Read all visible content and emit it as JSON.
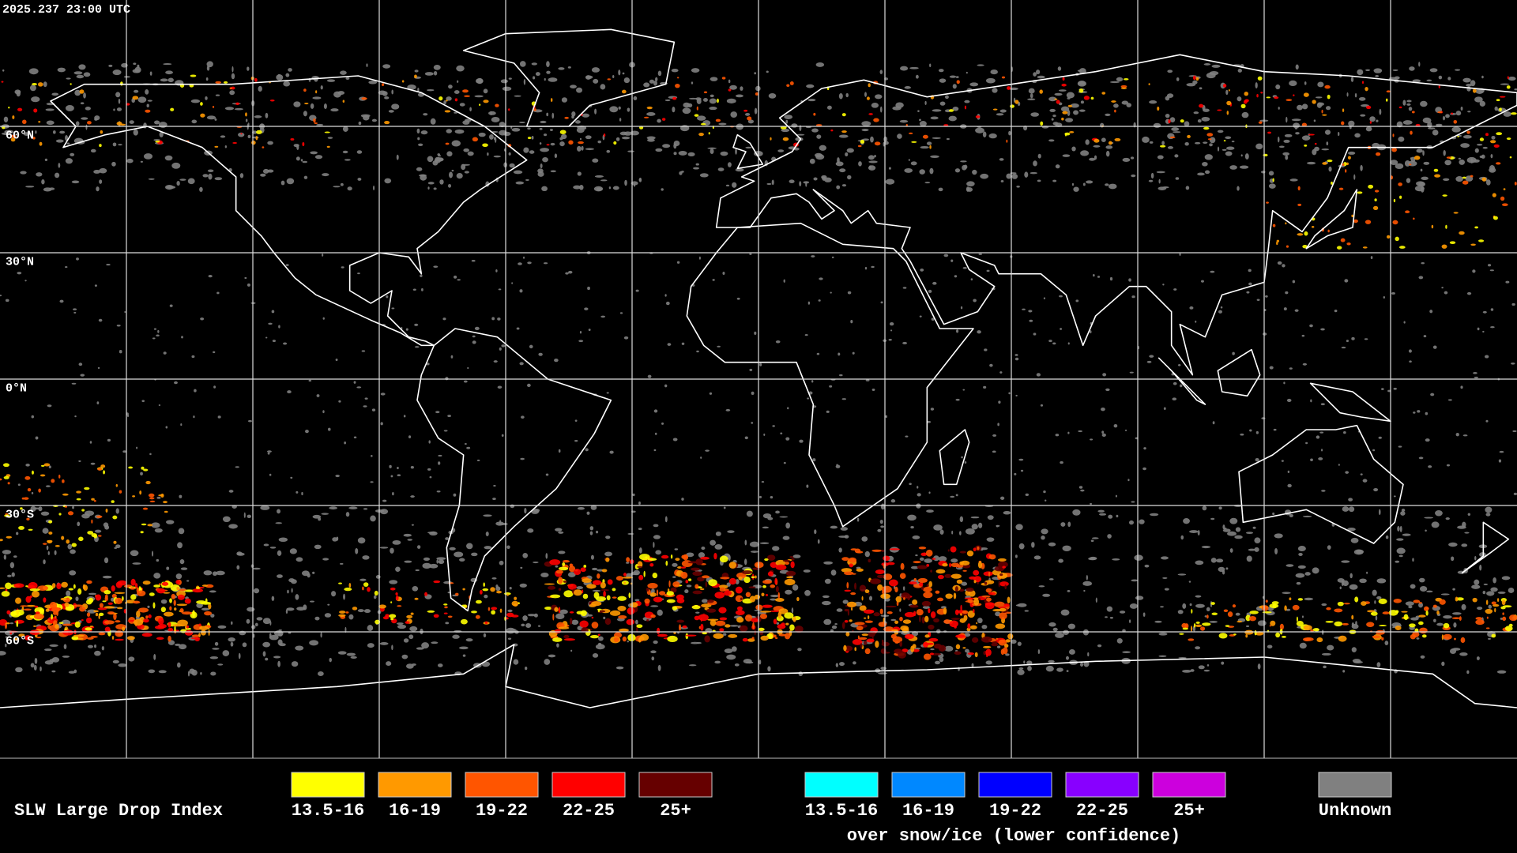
{
  "header": {
    "timestamp": "2025.237 23:00 UTC"
  },
  "map": {
    "lat_labels": [
      "60°N",
      "30°N",
      "0°N",
      "30°S",
      "60°S"
    ]
  },
  "legend": {
    "title": "SLW Large Drop Index",
    "items": [
      {
        "label": "13.5-16",
        "color": "#ffff00"
      },
      {
        "label": "16-19",
        "color": "#ff9900"
      },
      {
        "label": "19-22",
        "color": "#ff5500"
      },
      {
        "label": "22-25",
        "color": "#ff0000"
      },
      {
        "label": "25+",
        "color": "#660000"
      }
    ],
    "snow_ice_items": [
      {
        "label": "13.5-16",
        "color": "#00ffff"
      },
      {
        "label": "16-19",
        "color": "#0088ff"
      },
      {
        "label": "19-22",
        "color": "#0000ff"
      },
      {
        "label": "22-25",
        "color": "#8800ff"
      },
      {
        "label": "25+",
        "color": "#cc00dd"
      }
    ],
    "snow_ice_note": "over snow/ice (lower confidence)",
    "unknown": {
      "label": "Unknown",
      "color": "#808080"
    }
  }
}
